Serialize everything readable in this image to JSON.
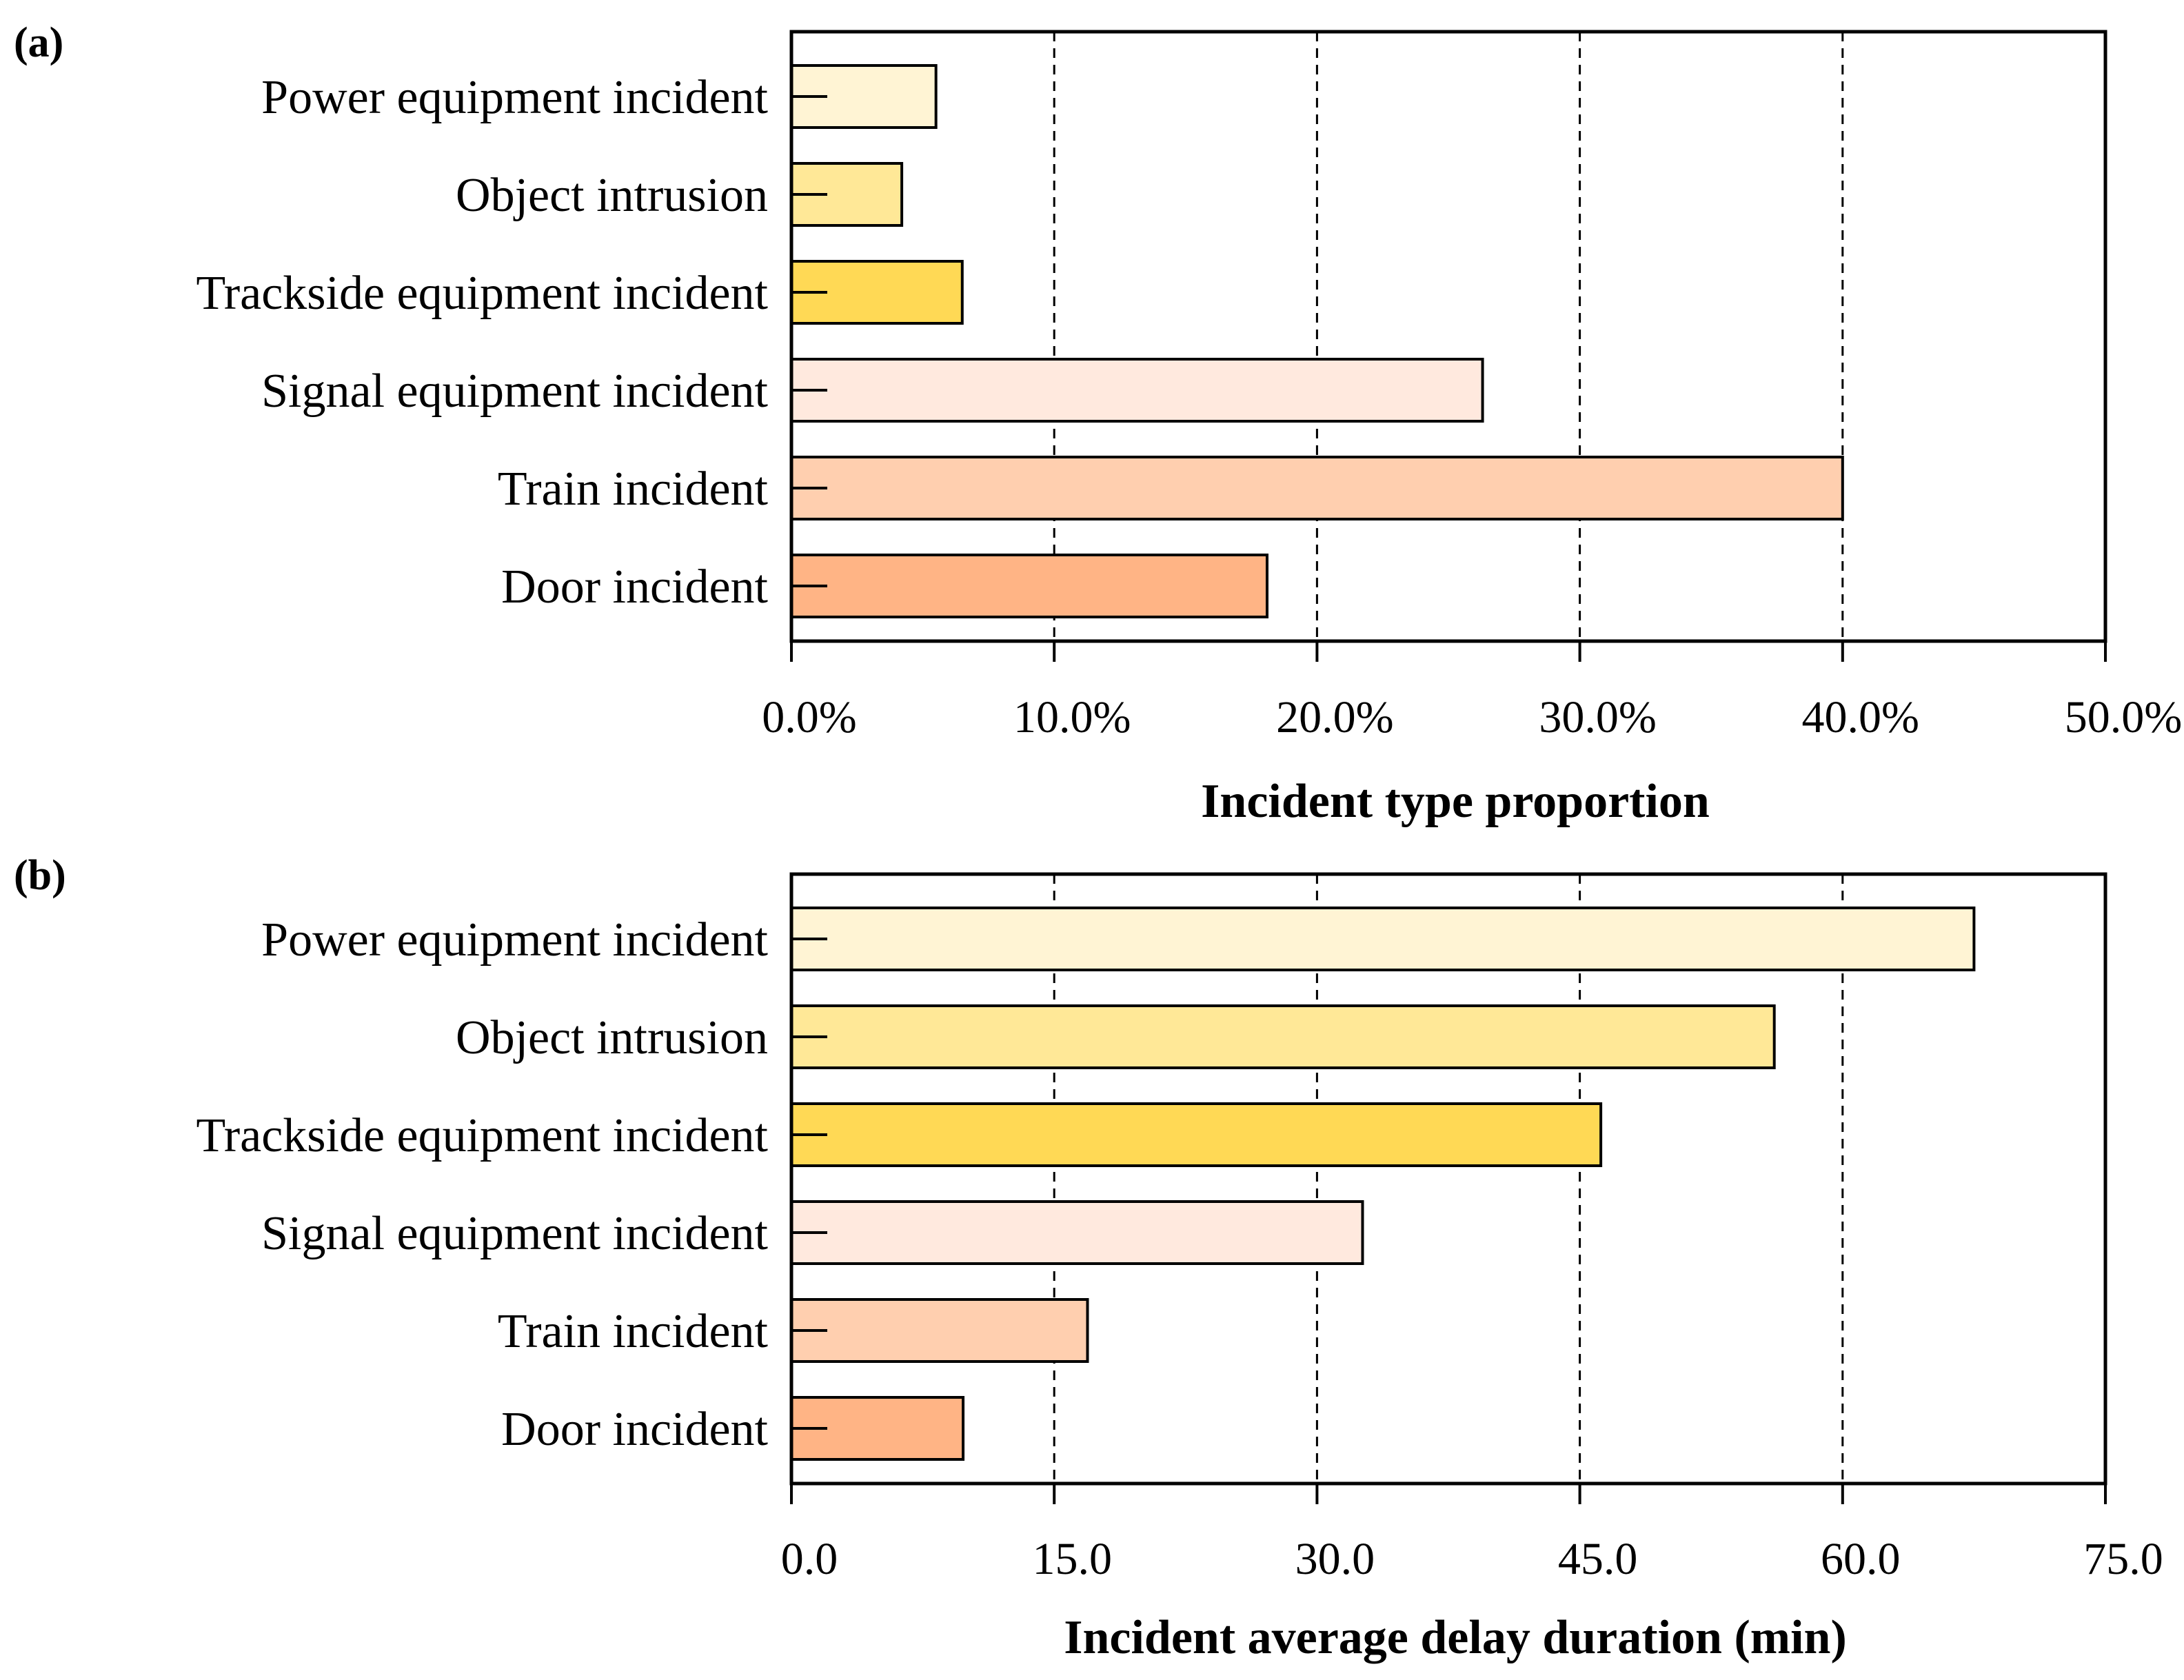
{
  "chart_data": [
    {
      "type": "bar",
      "orientation": "horizontal",
      "panel_label": "(a)",
      "categories": [
        "Power equipment incident",
        "Object intrusion",
        "Trackside equipment incident",
        "Signal equipment incident",
        "Train incident",
        "Door incident"
      ],
      "values": [
        5.5,
        4.2,
        6.5,
        26.3,
        40.0,
        18.1
      ],
      "value_unit": "%",
      "xlabel": "Incident type proportion",
      "ylabel": "",
      "xlim": [
        0,
        50
      ],
      "ticks": [
        0,
        10,
        20,
        30,
        40,
        50
      ],
      "tick_labels": [
        "0.0%",
        "10.0%",
        "20.0%",
        "30.0%",
        "40.0%",
        "50.0%"
      ],
      "grid": "vertical dashed",
      "colors": [
        "#FFF4D4",
        "#FFE897",
        "#FFD955",
        "#FFE9DE",
        "#FFCFAF",
        "#FFB485"
      ]
    },
    {
      "type": "bar",
      "orientation": "horizontal",
      "panel_label": "(b)",
      "categories": [
        "Power equipment incident",
        "Object intrusion",
        "Trackside equipment incident",
        "Signal equipment incident",
        "Train incident",
        "Door incident"
      ],
      "values": [
        67.5,
        56.1,
        46.2,
        32.6,
        16.9,
        9.8
      ],
      "value_unit": "min",
      "xlabel": "Incident average delay duration (min)",
      "ylabel": "",
      "xlim": [
        0,
        75
      ],
      "ticks": [
        0,
        15,
        30,
        45,
        60,
        75
      ],
      "tick_labels": [
        "0.0",
        "15.0",
        "30.0",
        "45.0",
        "60.0",
        "75.0"
      ],
      "grid": "vertical dashed",
      "colors": [
        "#FFF4D4",
        "#FFE897",
        "#FFD955",
        "#FFE9DE",
        "#FFCFAF",
        "#FFB485"
      ]
    }
  ]
}
